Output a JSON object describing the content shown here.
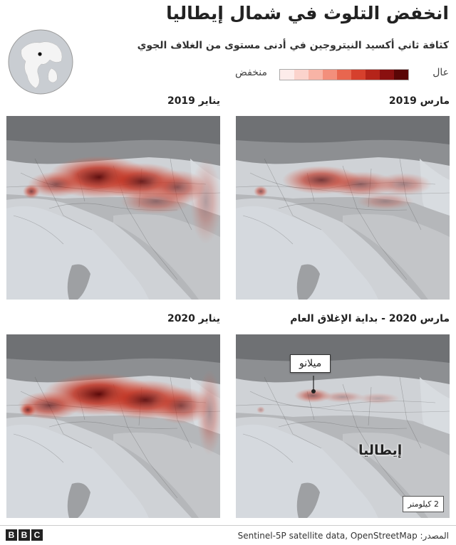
{
  "header": {
    "title": "انخفض التلوث في شمال إيطاليا",
    "subtitle": "كثافة ثاني أكسيد النيتروجين في أدنى مستوى من الغلاف الجوي"
  },
  "legend": {
    "high_label": "عال",
    "low_label": "منخفض",
    "colors": [
      "#fdecea",
      "#fbd3cc",
      "#f8b4a6",
      "#f38f7c",
      "#e8664f",
      "#d6402d",
      "#b5241a",
      "#8a1010",
      "#5a0606"
    ]
  },
  "panels": {
    "mar2019": {
      "label": "مارس 2019"
    },
    "jan2019": {
      "label": "يناير 2019"
    },
    "mar2020": {
      "label": "مارس 2020 - بداية الإغلاق العام",
      "milan_label": "ميلانو",
      "italy_label": "إيطاليا",
      "scale_label": "2 كيلومتر"
    },
    "jan2020": {
      "label": "يناير 2020"
    }
  },
  "footer": {
    "source": "المصدر: Sentinel-5P satellite data, OpenStreetMap",
    "logo_letters": [
      "B",
      "B",
      "C"
    ]
  }
}
